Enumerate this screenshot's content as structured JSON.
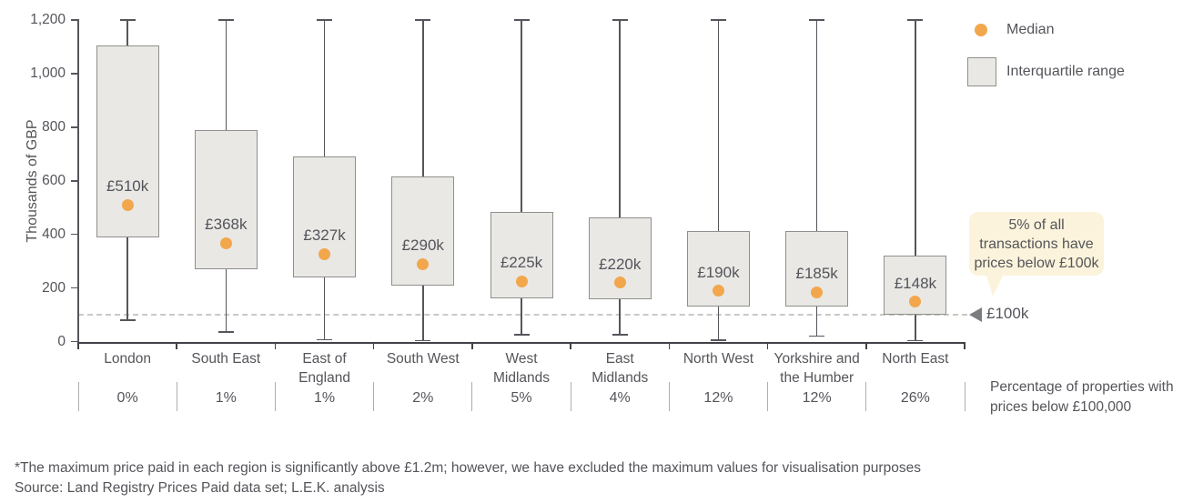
{
  "chart_data": {
    "type": "boxplot",
    "title": "",
    "xlabel": "",
    "ylabel": "Thousands of GBP",
    "ylim": [
      0,
      1200
    ],
    "yticks": [
      0,
      200,
      400,
      600,
      800,
      1000,
      1200
    ],
    "ytick_labels": [
      "0",
      "200",
      "400",
      "600",
      "800",
      "1,000",
      "1,200"
    ],
    "whisker_top_capped_at": 1200,
    "units": "thousands of GBP",
    "series": [
      {
        "name": "London",
        "label_lines": [
          "London"
        ],
        "min": 80,
        "q1": 388,
        "median": 510,
        "q3": 1105,
        "median_label": "£510k",
        "pct_below_100k": "0%"
      },
      {
        "name": "South East",
        "label_lines": [
          "South East"
        ],
        "min": 35,
        "q1": 271,
        "median": 368,
        "q3": 790,
        "median_label": "£368k",
        "pct_below_100k": "1%"
      },
      {
        "name": "East of England",
        "label_lines": [
          "East of",
          "England"
        ],
        "min": 6,
        "q1": 238,
        "median": 327,
        "q3": 691,
        "median_label": "£327k",
        "pct_below_100k": "1%"
      },
      {
        "name": "South West",
        "label_lines": [
          "South West"
        ],
        "min": 4,
        "q1": 210,
        "median": 290,
        "q3": 617,
        "median_label": "£290k",
        "pct_below_100k": "2%"
      },
      {
        "name": "West Midlands",
        "label_lines": [
          "West",
          "Midlands"
        ],
        "min": 26,
        "q1": 161,
        "median": 225,
        "q3": 483,
        "median_label": "£225k",
        "pct_below_100k": "5%"
      },
      {
        "name": "East Midlands",
        "label_lines": [
          "East",
          "Midlands"
        ],
        "min": 26,
        "q1": 159,
        "median": 220,
        "q3": 465,
        "median_label": "£220k",
        "pct_below_100k": "4%"
      },
      {
        "name": "North West",
        "label_lines": [
          "North West"
        ],
        "min": 5,
        "q1": 130,
        "median": 190,
        "q3": 414,
        "median_label": "£190k",
        "pct_below_100k": "12%"
      },
      {
        "name": "Yorkshire and the Humber",
        "label_lines": [
          "Yorkshire and",
          "the Humber"
        ],
        "min": 21,
        "q1": 130,
        "median": 185,
        "q3": 414,
        "median_label": "£185k",
        "pct_below_100k": "12%"
      },
      {
        "name": "North East",
        "label_lines": [
          "North East"
        ],
        "min": 4,
        "q1": 99,
        "median": 148,
        "q3": 320,
        "median_label": "£148k",
        "pct_below_100k": "26%"
      }
    ],
    "reference_line": {
      "value": 100,
      "label": "£100k",
      "style": "dashed"
    }
  },
  "legend": {
    "median_label": "Median",
    "iqr_label": "Interquartile range"
  },
  "callout": {
    "line1": "5% of all",
    "line2": "transactions have",
    "line3": "prices below £100k"
  },
  "pct_caption": {
    "line1": "Percentage of properties with",
    "line2": "prices below £100,000"
  },
  "footnotes": {
    "note": "*The maximum price paid in each region is significantly above £1.2m; however, we have excluded the maximum values for visualisation purposes",
    "source": "Source: Land Registry Prices Paid data set; L.E.K. analysis"
  },
  "colors": {
    "median": "#F2A74D",
    "box_fill": "#E9E8E5",
    "box_border": "#8F8F8D",
    "whisker": "#55565C",
    "axis": "#55565C",
    "axis_dark": "#404247",
    "text": "#54555A",
    "dashed_line": "#C9C9C6",
    "separator": "#ADADAB",
    "callout_bg": "#FBF3DB",
    "arrow": "#7B7C80"
  }
}
